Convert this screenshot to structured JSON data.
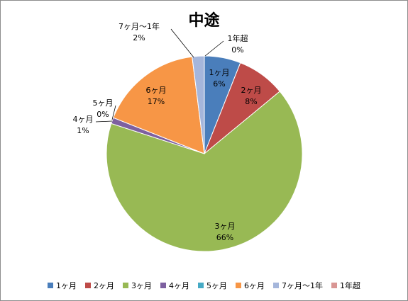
{
  "chart_data": {
    "type": "pie",
    "title": "中途",
    "categories": [
      "1ヶ月",
      "2ヶ月",
      "3ヶ月",
      "4ヶ月",
      "5ヶ月",
      "6ヶ月",
      "7ヶ月～1年",
      "1年超"
    ],
    "values": [
      6,
      8,
      66,
      1,
      0,
      17,
      2,
      0
    ],
    "labels": [
      "6%",
      "8%",
      "66%",
      "1%",
      "0%",
      "17%",
      "2%",
      "0%"
    ],
    "colors": [
      "#4a7ebb",
      "#be4b48",
      "#98b954",
      "#7d60a0",
      "#46aac5",
      "#f79646",
      "#a5b6db",
      "#d99694"
    ],
    "legend_position": "bottom"
  }
}
